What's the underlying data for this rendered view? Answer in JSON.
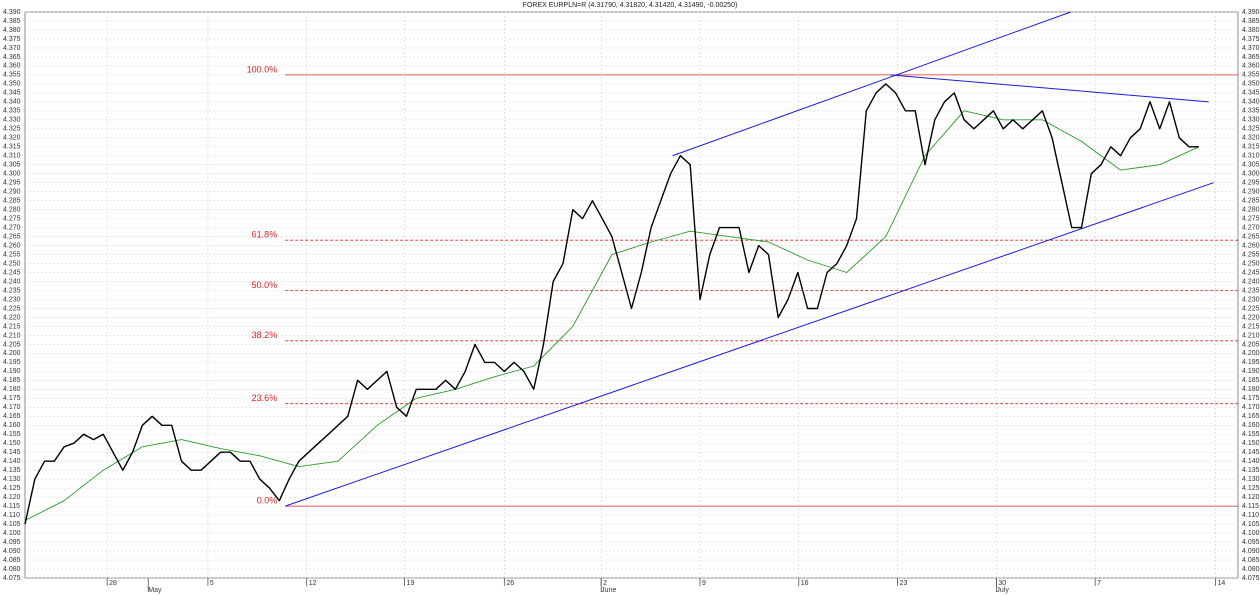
{
  "chart_data": {
    "type": "line",
    "title": "FOREX EURPLN=R (4.31790, 4.31820, 4.31420, 4.31490, -0.00250)",
    "xlim": [
      0,
      124
    ],
    "ylim": [
      4.075,
      4.39
    ],
    "grid": true,
    "xticks": [
      {
        "value": 8.4,
        "label": "28"
      },
      {
        "value": 18.7,
        "label": "5"
      },
      {
        "value": 28.8,
        "label": "12"
      },
      {
        "value": 38.8,
        "label": "19"
      },
      {
        "value": 49,
        "label": "26"
      },
      {
        "value": 58.9,
        "label": "2"
      },
      {
        "value": 69,
        "label": "9"
      },
      {
        "value": 79.1,
        "label": "16"
      },
      {
        "value": 89.2,
        "label": "23"
      },
      {
        "value": 99.3,
        "label": "30"
      },
      {
        "value": 109.4,
        "label": "7"
      },
      {
        "value": 121.7,
        "label": "14"
      }
    ],
    "months": [
      {
        "value": 12.6,
        "label": "May"
      },
      {
        "value": 58.9,
        "label": "June"
      },
      {
        "value": 99.3,
        "label": "July"
      }
    ],
    "yticks": [
      4.075,
      {
        "value": 4.08,
        "label": "4.080"
      },
      4.085,
      {
        "value": 4.09,
        "label": "4.090"
      },
      4.095,
      {
        "value": 4.1,
        "label": "4.100"
      },
      4.105,
      {
        "value": 4.11,
        "label": "4.110"
      },
      4.115,
      {
        "value": 4.12,
        "label": "4.120"
      },
      4.125,
      {
        "value": 4.13,
        "label": "4.130"
      },
      4.135,
      {
        "value": 4.14,
        "label": "4.140"
      },
      4.145,
      {
        "value": 4.15,
        "label": "4.150"
      },
      4.155,
      {
        "value": 4.16,
        "label": "4.160"
      },
      4.165,
      {
        "value": 4.17,
        "label": "4.170"
      },
      4.175,
      {
        "value": 4.18,
        "label": "4.180"
      },
      4.185,
      {
        "value": 4.19,
        "label": "4.190"
      },
      4.195,
      {
        "value": 4.2,
        "label": "4.200"
      },
      4.205,
      {
        "value": 4.21,
        "label": "4.210"
      },
      4.215,
      {
        "value": 4.22,
        "label": "4.220"
      },
      4.225,
      {
        "value": 4.23,
        "label": "4.230"
      },
      4.235,
      {
        "value": 4.24,
        "label": "4.240"
      },
      4.245,
      {
        "value": 4.25,
        "label": "4.250"
      },
      4.255,
      {
        "value": 4.26,
        "label": "4.260"
      },
      4.265,
      {
        "value": 4.27,
        "label": "4.270"
      },
      4.275,
      {
        "value": 4.28,
        "label": "4.280"
      },
      4.285,
      {
        "value": 4.29,
        "label": "4.290"
      },
      4.295,
      {
        "value": 4.3,
        "label": "4.300"
      },
      4.305,
      {
        "value": 4.31,
        "label": "4.310"
      },
      4.315,
      {
        "value": 4.32,
        "label": "4.320"
      },
      4.325,
      {
        "value": 4.33,
        "label": "4.330"
      },
      4.335,
      {
        "value": 4.34,
        "label": "4.340"
      },
      4.345,
      {
        "value": 4.35,
        "label": "4.350"
      },
      4.355,
      {
        "value": 4.36,
        "label": "4.360"
      },
      4.365,
      {
        "value": 4.37,
        "label": "4.370"
      },
      4.375,
      {
        "value": 4.38,
        "label": "4.380"
      },
      4.385,
      {
        "value": 4.39,
        "label": "4.390"
      }
    ],
    "series": [
      {
        "color": "#000000",
        "values": [
          4.105,
          4.13,
          4.14,
          4.14,
          4.148,
          4.15,
          4.155,
          4.152,
          4.155,
          4.145,
          4.135,
          4.145,
          4.16,
          4.165,
          4.16,
          4.16,
          4.14,
          4.135,
          4.135,
          4.14,
          4.145,
          4.145,
          4.14,
          4.14,
          4.13,
          4.125,
          4.118,
          4.13,
          4.14,
          4.145,
          4.15,
          4.155,
          4.16,
          4.165,
          4.185,
          4.18,
          4.185,
          4.19,
          4.17,
          4.165,
          4.18,
          4.18,
          4.18,
          4.185,
          4.18,
          4.19,
          4.205,
          4.195,
          4.195,
          4.19,
          4.195,
          4.19,
          4.18,
          4.205,
          4.24,
          4.25,
          4.28,
          4.275,
          4.285,
          4.275,
          4.265,
          4.245,
          4.225,
          4.245,
          4.27,
          4.285,
          4.3,
          4.31,
          4.305,
          4.23,
          4.255,
          4.27,
          4.27,
          4.27,
          4.245,
          4.26,
          4.255,
          4.22,
          4.23,
          4.245,
          4.225,
          4.225,
          4.245,
          4.25,
          4.26,
          4.275,
          4.335,
          4.345,
          4.35,
          4.345,
          4.335,
          4.335,
          4.305,
          4.33,
          4.34,
          4.345,
          4.33,
          4.325,
          4.33,
          4.335,
          4.325,
          4.33,
          4.325,
          4.33,
          4.335,
          4.32,
          4.295,
          4.27,
          4.27,
          4.3,
          4.305,
          4.315,
          4.31,
          4.32,
          4.325,
          4.34,
          4.325,
          4.34,
          4.32,
          4.315,
          4.315
        ]
      },
      {
        "color": "#2a9a2a",
        "x": [
          0,
          4,
          8,
          12,
          16,
          20,
          24,
          28,
          32,
          36,
          40,
          44,
          48,
          52,
          56,
          60,
          64,
          68,
          72,
          76,
          80,
          84,
          88,
          92,
          96,
          100,
          104,
          108,
          112,
          116,
          120
        ],
        "values": [
          4.107,
          4.118,
          4.135,
          4.148,
          4.152,
          4.147,
          4.143,
          4.137,
          4.14,
          4.16,
          4.175,
          4.18,
          4.187,
          4.193,
          4.215,
          4.255,
          4.262,
          4.268,
          4.265,
          4.262,
          4.252,
          4.245,
          4.265,
          4.31,
          4.335,
          4.33,
          4.33,
          4.318,
          4.302,
          4.305,
          4.315
        ]
      }
    ],
    "trendlines": [
      {
        "color": "#1a1adc",
        "x": [
          66.2,
          106.9
        ],
        "y": [
          4.31,
          4.39
        ]
      },
      {
        "color": "#1a1adc",
        "x": [
          26.6,
          121.5
        ],
        "y": [
          4.115,
          4.295
        ]
      },
      {
        "color": "#1a1adc",
        "x": [
          88.4,
          121
        ],
        "y": [
          4.355,
          4.34
        ]
      }
    ],
    "fib_color": "#e02020",
    "fib_levels": [
      {
        "label": "0.0%",
        "value": 4.115,
        "dashed": false
      },
      {
        "label": "23.6%",
        "value": 4.172,
        "dashed": true
      },
      {
        "label": "38.2%",
        "value": 4.207,
        "dashed": true
      },
      {
        "label": "50.0%",
        "value": 4.235,
        "dashed": true
      },
      {
        "label": "61.8%",
        "value": 4.263,
        "dashed": true
      },
      {
        "label": "100.0%",
        "value": 4.355,
        "dashed": false
      }
    ]
  }
}
